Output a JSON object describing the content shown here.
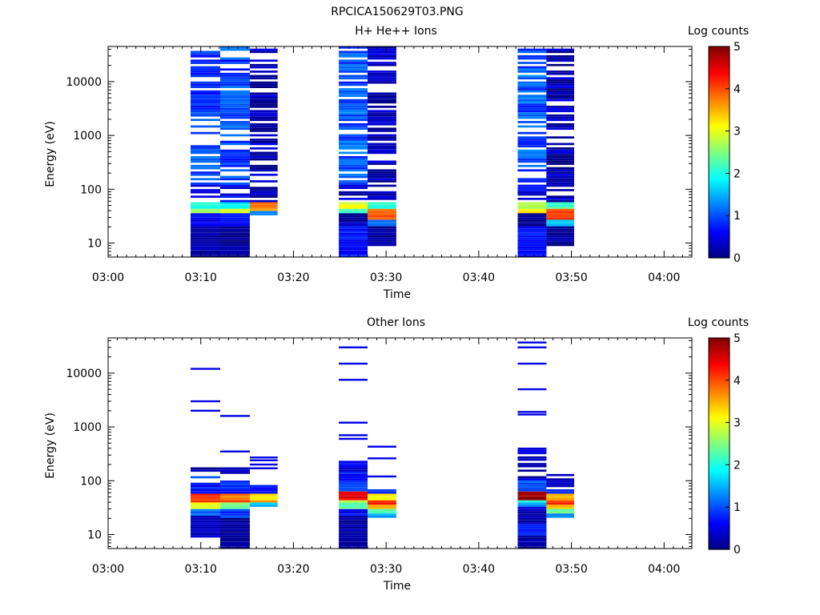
{
  "page_title": "RPCICA150629T03.PNG",
  "chart_data": [
    {
      "type": "heatmap",
      "title": "H+ He++ Ions",
      "xlabel": "Time",
      "ylabel": "Energy (eV)",
      "y_scale": "log",
      "ylim": [
        5.5,
        45000
      ],
      "x_ticks": [
        "03:00",
        "03:10",
        "03:20",
        "03:30",
        "03:40",
        "03:50",
        "04:00"
      ],
      "y_ticks": [
        "10",
        "100",
        "1000",
        "10000"
      ],
      "colorbar": {
        "label": "Log counts",
        "range": [
          0,
          5
        ],
        "ticks": [
          "0",
          "1",
          "2",
          "3",
          "4",
          "5"
        ]
      },
      "columns": [
        {
          "start": "03:08.9",
          "end": "03:12.1",
          "energy_range": [
            5.5,
            45000
          ],
          "bands": [
            [
              5.5,
              20,
              0.2
            ],
            [
              20,
              35,
              0.6
            ],
            [
              35,
              45,
              2.8
            ],
            [
              45,
              58,
              2.0
            ],
            [
              58,
              120,
              0.6
            ],
            [
              120,
              45000,
              0.9
            ]
          ]
        },
        {
          "start": "03:12.1",
          "end": "03:15.3",
          "energy_range": [
            5.5,
            45000
          ],
          "bands": [
            [
              5.5,
              20,
              0.1
            ],
            [
              20,
              35,
              0.6
            ],
            [
              35,
              45,
              3.0
            ],
            [
              45,
              58,
              1.8
            ],
            [
              58,
              120,
              0.5
            ],
            [
              120,
              45000,
              0.9
            ]
          ]
        },
        {
          "start": "03:15.3",
          "end": "03:18.3",
          "energy_range": [
            33,
            45000
          ],
          "bands": [
            [
              33,
              38,
              1.2
            ],
            [
              38,
              45,
              3.5
            ],
            [
              45,
              58,
              3.8
            ],
            [
              58,
              45000,
              0.2
            ]
          ]
        },
        {
          "start": "03:24.9",
          "end": "03:28.0",
          "energy_range": [
            5.5,
            45000
          ],
          "bands": [
            [
              5.5,
              20,
              0.7
            ],
            [
              20,
              35,
              0.2
            ],
            [
              35,
              45,
              2.2
            ],
            [
              45,
              58,
              3.0
            ],
            [
              58,
              120,
              0.4
            ],
            [
              120,
              45000,
              1.0
            ]
          ]
        },
        {
          "start": "03:28.0",
          "end": "03:31.1",
          "energy_range": [
            9,
            45000
          ],
          "bands": [
            [
              9,
              20,
              0.1
            ],
            [
              20,
              27,
              1.3
            ],
            [
              27,
              45,
              3.9
            ],
            [
              45,
              58,
              2.0
            ],
            [
              58,
              45000,
              0.2
            ]
          ]
        },
        {
          "start": "03:44.2",
          "end": "03:47.3",
          "energy_range": [
            5.5,
            45000
          ],
          "bands": [
            [
              5.5,
              20,
              0.7
            ],
            [
              20,
              35,
              0.1
            ],
            [
              35,
              45,
              3.2
            ],
            [
              45,
              58,
              2.8
            ],
            [
              58,
              120,
              0.4
            ],
            [
              120,
              45000,
              1.0
            ]
          ]
        },
        {
          "start": "03:47.3",
          "end": "03:50.3",
          "energy_range": [
            9,
            45000
          ],
          "bands": [
            [
              9,
              20,
              0.1
            ],
            [
              20,
              27,
              1.5
            ],
            [
              27,
              45,
              4.0
            ],
            [
              45,
              58,
              2.2
            ],
            [
              58,
              45000,
              0.2
            ]
          ]
        }
      ]
    },
    {
      "type": "heatmap",
      "title": "Other Ions",
      "xlabel": "Time",
      "ylabel": "Energy (eV)",
      "y_scale": "log",
      "ylim": [
        5.5,
        45000
      ],
      "x_ticks": [
        "03:00",
        "03:10",
        "03:20",
        "03:30",
        "03:40",
        "03:50",
        "04:00"
      ],
      "y_ticks": [
        "10",
        "100",
        "1000",
        "10000"
      ],
      "colorbar": {
        "label": "Log counts",
        "range": [
          0,
          5
        ],
        "ticks": [
          "0",
          "1",
          "2",
          "3",
          "4",
          "5"
        ]
      },
      "columns": [
        {
          "start": "03:08.9",
          "end": "03:12.1",
          "energy_range": [
            9,
            200
          ],
          "bands": [
            [
              9,
              22,
              0.3
            ],
            [
              22,
              30,
              1.2
            ],
            [
              30,
              38,
              3.0
            ],
            [
              38,
              45,
              4.0
            ],
            [
              45,
              60,
              4.1
            ],
            [
              60,
              120,
              0.8
            ],
            [
              120,
              200,
              0.2
            ]
          ],
          "lines": [
            12000,
            3000,
            2000
          ]
        },
        {
          "start": "03:12.1",
          "end": "03:15.3",
          "energy_range": [
            5.5,
            170
          ],
          "bands": [
            [
              5.5,
              20,
              0.1
            ],
            [
              20,
              30,
              0.9
            ],
            [
              30,
              38,
              2.4
            ],
            [
              38,
              45,
              4.2
            ],
            [
              45,
              60,
              3.8
            ],
            [
              60,
              100,
              0.8
            ],
            [
              100,
              170,
              0.3
            ]
          ],
          "lines": [
            1600,
            350
          ]
        },
        {
          "start": "03:15.3",
          "end": "03:18.3",
          "energy_range": [
            33,
            80
          ],
          "bands": [
            [
              33,
              38,
              1.6
            ],
            [
              38,
              45,
              3.6
            ],
            [
              45,
              60,
              3.3
            ],
            [
              60,
              80,
              0.8
            ]
          ],
          "lines": [
            270,
            240,
            200,
            170
          ]
        },
        {
          "start": "03:24.9",
          "end": "03:28.0",
          "energy_range": [
            5.5,
            230
          ],
          "bands": [
            [
              5.5,
              22,
              0.2
            ],
            [
              22,
              30,
              0.6
            ],
            [
              30,
              38,
              2.3
            ],
            [
              38,
              45,
              2.8
            ],
            [
              45,
              65,
              4.4
            ],
            [
              65,
              100,
              1.0
            ],
            [
              100,
              230,
              0.5
            ]
          ],
          "lines": [
            30000,
            15000,
            7500,
            1200,
            700,
            600
          ]
        },
        {
          "start": "03:28.0",
          "end": "03:31.1",
          "energy_range": [
            20,
            70
          ],
          "bands": [
            [
              20,
              24,
              1.4
            ],
            [
              24,
              30,
              2.3
            ],
            [
              30,
              36,
              3.6
            ],
            [
              36,
              45,
              4.2
            ],
            [
              45,
              55,
              3.1
            ],
            [
              55,
              70,
              0.8
            ]
          ],
          "lines": [
            430,
            260,
            120
          ]
        },
        {
          "start": "03:44.2",
          "end": "03:47.3",
          "energy_range": [
            5.5,
            400
          ],
          "bands": [
            [
              5.5,
              10,
              0.2
            ],
            [
              10,
              15,
              0.7
            ],
            [
              15,
              25,
              0.3
            ],
            [
              25,
              33,
              0.4
            ],
            [
              33,
              38,
              1.4
            ],
            [
              38,
              45,
              2.2
            ],
            [
              45,
              65,
              4.8
            ],
            [
              65,
              100,
              1.0
            ],
            [
              100,
              400,
              0.3
            ]
          ],
          "lines": [
            37000,
            30000,
            15000,
            5000,
            1900,
            1700
          ]
        },
        {
          "start": "03:47.3",
          "end": "03:50.3",
          "energy_range": [
            20,
            140
          ],
          "bands": [
            [
              20,
              24,
              1.3
            ],
            [
              24,
              30,
              2.4
            ],
            [
              30,
              36,
              3.4
            ],
            [
              36,
              45,
              4.2
            ],
            [
              45,
              55,
              3.4
            ],
            [
              55,
              70,
              0.9
            ],
            [
              70,
              140,
              0.4
            ]
          ]
        }
      ]
    }
  ]
}
